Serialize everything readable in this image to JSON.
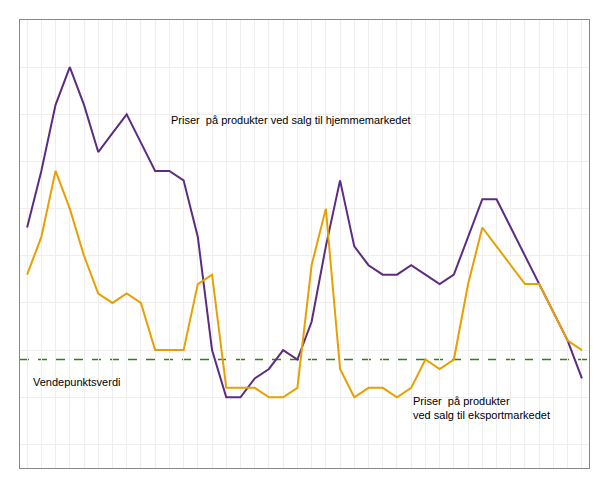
{
  "chart_data": {
    "type": "line",
    "x": [
      0,
      1,
      2,
      3,
      4,
      5,
      6,
      7,
      8,
      9,
      10,
      11,
      12,
      13,
      14,
      15,
      16,
      17,
      18,
      19,
      20,
      21,
      22,
      23,
      24,
      25,
      26,
      27,
      28,
      29,
      30,
      31,
      32,
      33,
      34,
      35,
      36,
      37,
      38,
      39
    ],
    "series": [
      {
        "color": "#5B2C82",
        "values": [
          0.56,
          0.68,
          0.82,
          0.9,
          0.82,
          0.72,
          0.76,
          0.8,
          0.74,
          0.68,
          0.68,
          0.66,
          0.54,
          0.3,
          0.2,
          0.2,
          0.24,
          0.26,
          0.3,
          0.28,
          0.36,
          0.52,
          0.66,
          0.52,
          0.48,
          0.46,
          0.46,
          0.48,
          0.46,
          0.44,
          0.46,
          0.54,
          0.62,
          0.62,
          0.56,
          0.5,
          0.44,
          0.38,
          0.32,
          0.24
        ]
      },
      {
        "color": "#E8A000",
        "values": [
          0.46,
          0.54,
          0.68,
          0.6,
          0.5,
          0.42,
          0.4,
          0.42,
          0.4,
          0.3,
          0.3,
          0.3,
          0.44,
          0.46,
          0.22,
          0.22,
          0.22,
          0.2,
          0.2,
          0.22,
          0.48,
          0.6,
          0.26,
          0.2,
          0.22,
          0.22,
          0.2,
          0.22,
          0.28,
          0.26,
          0.28,
          0.44,
          0.56,
          0.52,
          0.48,
          0.44,
          0.44,
          0.38,
          0.32,
          0.3
        ]
      }
    ],
    "hlines": [
      {
        "value": 0.28,
        "color": "#3A7A1E",
        "line_style": "dashed"
      }
    ],
    "annotations": [
      {
        "text": "Priser  på produkter ved salg til hjemmemarkedet",
        "x": 10,
        "y": 0.77,
        "position": "above"
      },
      {
        "text": "Priser  på produkter\nved salg til eksportmarkedet",
        "x": 27,
        "y": 0.21,
        "position": "below"
      },
      {
        "text": "Vendepunktsverdi",
        "x": 0.3,
        "y": 0.25,
        "position": "below"
      }
    ],
    "xlim": [
      -0.5,
      39.5
    ],
    "xticks": [
      0,
      1,
      2,
      3,
      4,
      5,
      6,
      7,
      8,
      9,
      10,
      11,
      12,
      13,
      14,
      15,
      16,
      17,
      18,
      19,
      20,
      21,
      22,
      23,
      24,
      25,
      26,
      27,
      28,
      29,
      30,
      31,
      32,
      33,
      34,
      35,
      36,
      37,
      38,
      39
    ],
    "ylim": [
      0.05,
      1.0
    ],
    "yticks": [
      0.1,
      0.2,
      0.3,
      0.4,
      0.5,
      0.6,
      0.7,
      0.8,
      0.9,
      1.0
    ],
    "grid": true,
    "tick_labels": false
  }
}
